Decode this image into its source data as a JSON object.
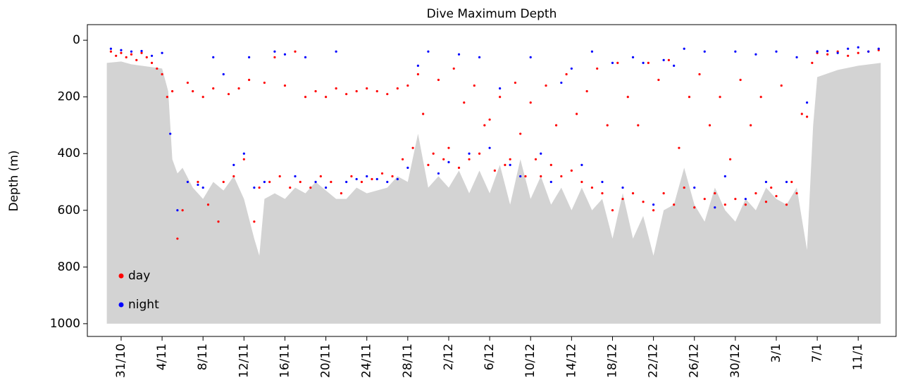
{
  "chart_data": {
    "type": "scatter",
    "title": "Dive Maximum Depth",
    "y_label": "Depth (m)",
    "xlim": [
      -3.3,
      75.7
    ],
    "ylim": [
      -55,
      1045
    ],
    "y_inverted": true,
    "xticks": [
      {
        "value": 0,
        "label": "31/10"
      },
      {
        "value": 4,
        "label": "4/11"
      },
      {
        "value": 8,
        "label": "8/11"
      },
      {
        "value": 12,
        "label": "12/11"
      },
      {
        "value": 16,
        "label": "16/11"
      },
      {
        "value": 20,
        "label": "20/11"
      },
      {
        "value": 24,
        "label": "24/11"
      },
      {
        "value": 28,
        "label": "28/11"
      },
      {
        "value": 32,
        "label": "2/12"
      },
      {
        "value": 36,
        "label": "6/12"
      },
      {
        "value": 40,
        "label": "10/12"
      },
      {
        "value": 44,
        "label": "14/12"
      },
      {
        "value": 48,
        "label": "18/12"
      },
      {
        "value": 52,
        "label": "22/12"
      },
      {
        "value": 56,
        "label": "26/12"
      },
      {
        "value": 60,
        "label": "30/12"
      },
      {
        "value": 64,
        "label": "3/1"
      },
      {
        "value": 68,
        "label": "7/1"
      },
      {
        "value": 72,
        "label": "11/1"
      }
    ],
    "yticks": [
      0,
      200,
      400,
      600,
      800,
      1000
    ],
    "legend": "lower left",
    "seafloor": {
      "color": "#d3d3d3",
      "fill_to": 1000,
      "x": [
        -1.4,
        0,
        1,
        2,
        3,
        4,
        4.6,
        5,
        5.5,
        6,
        7,
        8,
        9,
        10,
        11,
        12,
        13,
        13.5,
        14,
        15,
        16,
        17,
        18,
        19,
        20,
        21,
        22,
        23,
        24,
        25,
        26,
        27,
        28,
        29,
        30,
        31,
        32,
        33,
        34,
        35,
        36,
        37,
        38,
        39,
        40,
        41,
        42,
        43,
        44,
        45,
        46,
        47,
        48,
        49,
        50,
        51,
        52,
        53,
        54,
        55,
        56,
        57,
        58,
        59,
        60,
        61,
        62,
        63,
        64,
        65,
        66,
        67,
        67.6,
        68,
        70,
        72,
        74.2
      ],
      "values": [
        80,
        75,
        85,
        90,
        95,
        100,
        180,
        420,
        470,
        450,
        520,
        560,
        500,
        530,
        480,
        560,
        700,
        760,
        560,
        540,
        560,
        520,
        540,
        500,
        530,
        560,
        560,
        520,
        540,
        530,
        520,
        480,
        500,
        330,
        520,
        480,
        520,
        460,
        540,
        460,
        540,
        440,
        580,
        420,
        560,
        480,
        580,
        520,
        600,
        520,
        600,
        560,
        700,
        540,
        700,
        620,
        760,
        600,
        580,
        450,
        580,
        640,
        520,
        600,
        640,
        560,
        600,
        520,
        560,
        580,
        520,
        740,
        300,
        130,
        105,
        90,
        80
      ]
    },
    "series": [
      {
        "name": "day",
        "color": "#ff0000",
        "x": [
          -1,
          -0.5,
          0,
          0.5,
          1,
          1.5,
          2,
          2.5,
          3,
          3.5,
          4,
          4.5,
          5,
          5.5,
          6,
          6.5,
          7,
          7.5,
          8,
          8.5,
          9,
          9.5,
          10,
          10.5,
          11,
          11.5,
          12,
          12.5,
          13,
          13.5,
          14,
          14.5,
          15,
          15.5,
          16,
          16.5,
          17,
          17.5,
          18,
          18.5,
          19,
          19.5,
          20,
          20.5,
          21,
          21.5,
          22,
          22.5,
          23,
          23.5,
          24,
          24.5,
          25,
          25.5,
          26,
          26.5,
          27,
          27.5,
          28,
          28.5,
          29,
          29.5,
          30,
          30.5,
          31,
          31.5,
          32,
          32.5,
          33,
          33.5,
          34,
          34.5,
          35,
          35.5,
          36,
          36.5,
          37,
          37.5,
          38,
          38.5,
          39,
          39.5,
          40,
          40.5,
          41,
          41.5,
          42,
          42.5,
          43,
          43.5,
          44,
          44.5,
          45,
          45.5,
          46,
          46.5,
          47,
          47.5,
          48,
          48.5,
          49,
          49.5,
          50,
          50.5,
          51,
          51.5,
          52,
          52.5,
          53,
          53.5,
          54,
          54.5,
          55,
          55.5,
          56,
          56.5,
          57,
          57.5,
          58,
          58.5,
          59,
          59.5,
          60,
          60.5,
          61,
          61.5,
          62,
          62.5,
          63,
          63.5,
          64,
          64.5,
          65,
          65.5,
          66,
          66.5,
          67,
          67.5,
          68,
          69,
          70,
          71,
          72,
          73,
          74
        ],
        "values": [
          40,
          55,
          45,
          60,
          50,
          70,
          45,
          60,
          80,
          100,
          120,
          200,
          180,
          700,
          600,
          150,
          180,
          500,
          200,
          580,
          170,
          640,
          500,
          190,
          480,
          170,
          420,
          140,
          640,
          520,
          150,
          500,
          60,
          480,
          160,
          520,
          40,
          500,
          200,
          520,
          180,
          480,
          200,
          500,
          170,
          540,
          190,
          480,
          180,
          500,
          170,
          490,
          180,
          470,
          190,
          480,
          170,
          420,
          160,
          380,
          120,
          260,
          440,
          400,
          140,
          420,
          380,
          100,
          450,
          220,
          420,
          160,
          400,
          300,
          280,
          460,
          200,
          440,
          420,
          150,
          330,
          480,
          220,
          420,
          480,
          160,
          440,
          300,
          480,
          120,
          460,
          260,
          500,
          180,
          520,
          100,
          540,
          300,
          600,
          80,
          560,
          200,
          540,
          300,
          570,
          80,
          600,
          140,
          540,
          70,
          580,
          380,
          520,
          200,
          590,
          120,
          560,
          300,
          540,
          200,
          580,
          420,
          560,
          140,
          580,
          300,
          540,
          200,
          570,
          520,
          550,
          160,
          580,
          500,
          540,
          260,
          270,
          80,
          45,
          50,
          40,
          55,
          45,
          40,
          35
        ]
      },
      {
        "name": "night",
        "color": "#0000ff",
        "x": [
          -1,
          0,
          1,
          2,
          3,
          4,
          4.8,
          5.5,
          6.5,
          7.5,
          8,
          9,
          10,
          11,
          12,
          12.5,
          13,
          14,
          15,
          16,
          17,
          18,
          19,
          20,
          21,
          22,
          23,
          24,
          25,
          26,
          27,
          28,
          29,
          30,
          31,
          32,
          33,
          34,
          35,
          36,
          37,
          38,
          39,
          40,
          41,
          42,
          43,
          44,
          45,
          46,
          47,
          48,
          49,
          50,
          51,
          52,
          53,
          54,
          55,
          56,
          57,
          58,
          59,
          60,
          61,
          62,
          63,
          64,
          65,
          66,
          67,
          68,
          69,
          70,
          71,
          72,
          73,
          74
        ],
        "values": [
          30,
          35,
          40,
          38,
          55,
          45,
          330,
          600,
          500,
          510,
          520,
          60,
          120,
          440,
          400,
          60,
          520,
          500,
          40,
          50,
          480,
          60,
          500,
          520,
          40,
          500,
          490,
          480,
          490,
          500,
          490,
          450,
          90,
          40,
          470,
          430,
          50,
          400,
          60,
          380,
          170,
          440,
          480,
          60,
          400,
          500,
          150,
          100,
          440,
          40,
          500,
          80,
          520,
          60,
          80,
          580,
          70,
          90,
          30,
          520,
          40,
          590,
          480,
          40,
          560,
          50,
          500,
          40,
          500,
          60,
          220,
          40,
          38,
          45,
          30,
          25,
          40,
          30
        ]
      }
    ]
  }
}
